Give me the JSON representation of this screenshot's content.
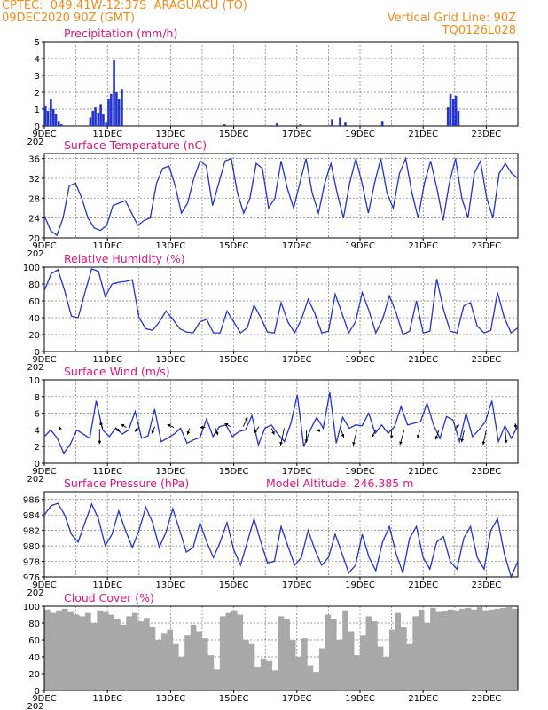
{
  "header": {
    "line1_left": "CPTEC:  049:41W-12:37S  ARAGUACU (TO)",
    "line2_left": "09DEC2020 90Z (GMT)",
    "line1_right": "Vertical Grid Line: 90Z",
    "line2_right": "TQ0126L028"
  },
  "x_ticks": [
    "9DEC",
    "11DEC",
    "13DEC",
    "15DEC",
    "17DEC",
    "19DEC",
    "21DEC",
    "23DEC"
  ],
  "x_sub_label": "202",
  "colors": {
    "line": "#2233cc",
    "bar": "#2233cc",
    "cloud": "#a8a8a8",
    "title": "#e0157a",
    "header": "#f08c1c"
  },
  "chart_data": [
    {
      "id": "precip",
      "type": "bar",
      "title": "Precipitation (mm/h)",
      "ylim": [
        0,
        5
      ],
      "yticks": [
        0,
        1,
        2,
        3,
        4,
        5
      ],
      "x_unit": "days since 9DEC 00Z",
      "x": [
        0.0,
        0.08,
        0.17,
        0.25,
        0.33,
        0.42,
        0.5,
        1.42,
        1.5,
        1.58,
        1.67,
        1.75,
        1.83,
        1.92,
        2.0,
        2.08,
        2.17,
        2.25,
        2.33,
        2.42,
        5.67,
        7.33,
        8.08,
        9.08,
        9.33,
        9.5,
        10.67,
        12.75,
        12.83,
        12.92,
        13.0,
        13.08
      ],
      "values": [
        1.2,
        0.9,
        1.6,
        1.0,
        0.7,
        0.3,
        0.1,
        0.5,
        0.9,
        1.1,
        0.8,
        1.3,
        0.7,
        0.2,
        1.6,
        1.9,
        3.9,
        2.0,
        1.6,
        2.2,
        0.1,
        0.15,
        0.1,
        0.4,
        0.5,
        0.2,
        0.3,
        1.1,
        1.9,
        1.6,
        1.8,
        0.9
      ]
    },
    {
      "id": "temp",
      "type": "line",
      "title": "Surface Temperature (nC)",
      "ylim": [
        20,
        37
      ],
      "yticks": [
        20,
        24,
        28,
        32,
        36
      ],
      "values": [
        24.5,
        21.5,
        20.5,
        24,
        30.5,
        31,
        28,
        24,
        22,
        21.5,
        22.5,
        26.5,
        27,
        27.5,
        25,
        22.5,
        23.5,
        24,
        31,
        34,
        34.5,
        30.5,
        25,
        27,
        32,
        35.5,
        34.5,
        26.5,
        31,
        35.5,
        36,
        29,
        25,
        28,
        35,
        34,
        26,
        28,
        35.5,
        30,
        26,
        31,
        36,
        29,
        25,
        31,
        35,
        29,
        24,
        31,
        36,
        31,
        25,
        31,
        36,
        29,
        26,
        33,
        36,
        29,
        24,
        31,
        35.5,
        30,
        23.5,
        31,
        36,
        28,
        24,
        33,
        35.5,
        28,
        24,
        33,
        35,
        33,
        32
      ]
    },
    {
      "id": "rh",
      "type": "line",
      "title": "Relative Humidity (%)",
      "ylim": [
        0,
        100
      ],
      "yticks": [
        0,
        20,
        40,
        60,
        80,
        100
      ],
      "values": [
        72,
        92,
        97,
        72,
        42,
        40,
        70,
        98,
        95,
        65,
        80,
        82,
        83,
        85,
        40,
        27,
        25,
        35,
        48,
        38,
        27,
        23,
        22,
        35,
        38,
        22,
        22,
        48,
        35,
        22,
        28,
        55,
        40,
        23,
        22,
        58,
        35,
        22,
        38,
        62,
        45,
        22,
        24,
        68,
        45,
        22,
        35,
        70,
        48,
        22,
        38,
        66,
        46,
        20,
        24,
        60,
        22,
        24,
        86,
        50,
        24,
        22,
        54,
        58,
        30,
        22,
        25,
        70,
        40,
        22,
        28
      ]
    },
    {
      "id": "wind",
      "type": "line",
      "title": "Surface Wind (m/s)",
      "ylim": [
        0,
        10
      ],
      "yticks": [
        0,
        2,
        4,
        6,
        8,
        10
      ],
      "values": [
        3.2,
        4.0,
        3.0,
        1.2,
        2.3,
        4.0,
        3.5,
        3.0,
        7.5,
        4.0,
        3.2,
        4.2,
        3.5,
        4.0,
        6.2,
        3.0,
        3.3,
        6.5,
        2.6,
        3.0,
        3.5,
        4.2,
        2.4,
        2.8,
        3.1,
        5.3,
        3.2,
        4.4,
        4.6,
        3.2,
        3.8,
        4.0,
        5.7,
        2.2,
        4.2,
        4.6,
        3.5,
        2.6,
        4.8,
        8.2,
        2.0,
        4.0,
        5.5,
        4.2,
        8.5,
        2.4,
        5.5,
        4.2,
        4.6,
        4.5,
        6.0,
        3.6,
        4.6,
        3.6,
        4.4,
        6.8,
        4.6,
        4.8,
        5.0,
        7.2,
        4.6,
        3.0,
        5.6,
        5.2,
        2.6,
        6.0,
        3.2,
        4.0,
        5.0,
        7.5,
        2.6,
        4.5,
        3.0,
        4.5
      ]
    },
    {
      "id": "pressure",
      "type": "line",
      "title": "Surface Pressure (hPa)",
      "annotation": "Model Altitude: 246.385 m",
      "ylim": [
        976,
        987
      ],
      "yticks": [
        976,
        978,
        980,
        982,
        984,
        986
      ],
      "values": [
        984,
        985.2,
        985.5,
        984,
        981.5,
        980.5,
        983,
        985.4,
        983.5,
        980,
        981.5,
        984.5,
        982,
        979.8,
        982,
        985,
        983,
        979.8,
        981.8,
        984.8,
        982,
        979.2,
        979.8,
        983,
        980.5,
        978.5,
        980.5,
        983,
        979.5,
        977.5,
        980.5,
        983.5,
        980.5,
        977.8,
        978,
        982.5,
        980,
        977.5,
        978.5,
        982,
        979.5,
        977.5,
        978.5,
        981.5,
        979,
        976.5,
        977.5,
        981.5,
        978.5,
        976.8,
        980.5,
        982.5,
        979,
        976.5,
        981,
        982.5,
        978.5,
        977,
        980.5,
        981.2,
        978,
        977,
        981,
        982.5,
        978.5,
        977,
        982,
        983.5,
        979,
        976,
        978
      ]
    },
    {
      "id": "cloud",
      "type": "area",
      "title": "Cloud Cover (%)",
      "ylim": [
        0,
        100
      ],
      "yticks": [
        0,
        20,
        40,
        60,
        80,
        100
      ],
      "values": [
        96,
        92,
        95,
        97,
        93,
        90,
        88,
        92,
        80,
        95,
        93,
        90,
        85,
        78,
        88,
        92,
        82,
        86,
        75,
        60,
        68,
        72,
        55,
        40,
        65,
        78,
        70,
        62,
        42,
        25,
        88,
        92,
        95,
        90,
        60,
        55,
        28,
        38,
        35,
        24,
        88,
        85,
        60,
        40,
        62,
        30,
        22,
        50,
        90,
        85,
        60,
        95,
        70,
        42,
        65,
        88,
        82,
        52,
        40,
        72,
        92,
        75,
        55,
        88,
        96,
        80,
        98,
        93,
        94,
        96,
        95,
        97,
        98,
        96,
        99,
        95,
        96,
        97,
        98,
        99,
        97
      ]
    }
  ]
}
